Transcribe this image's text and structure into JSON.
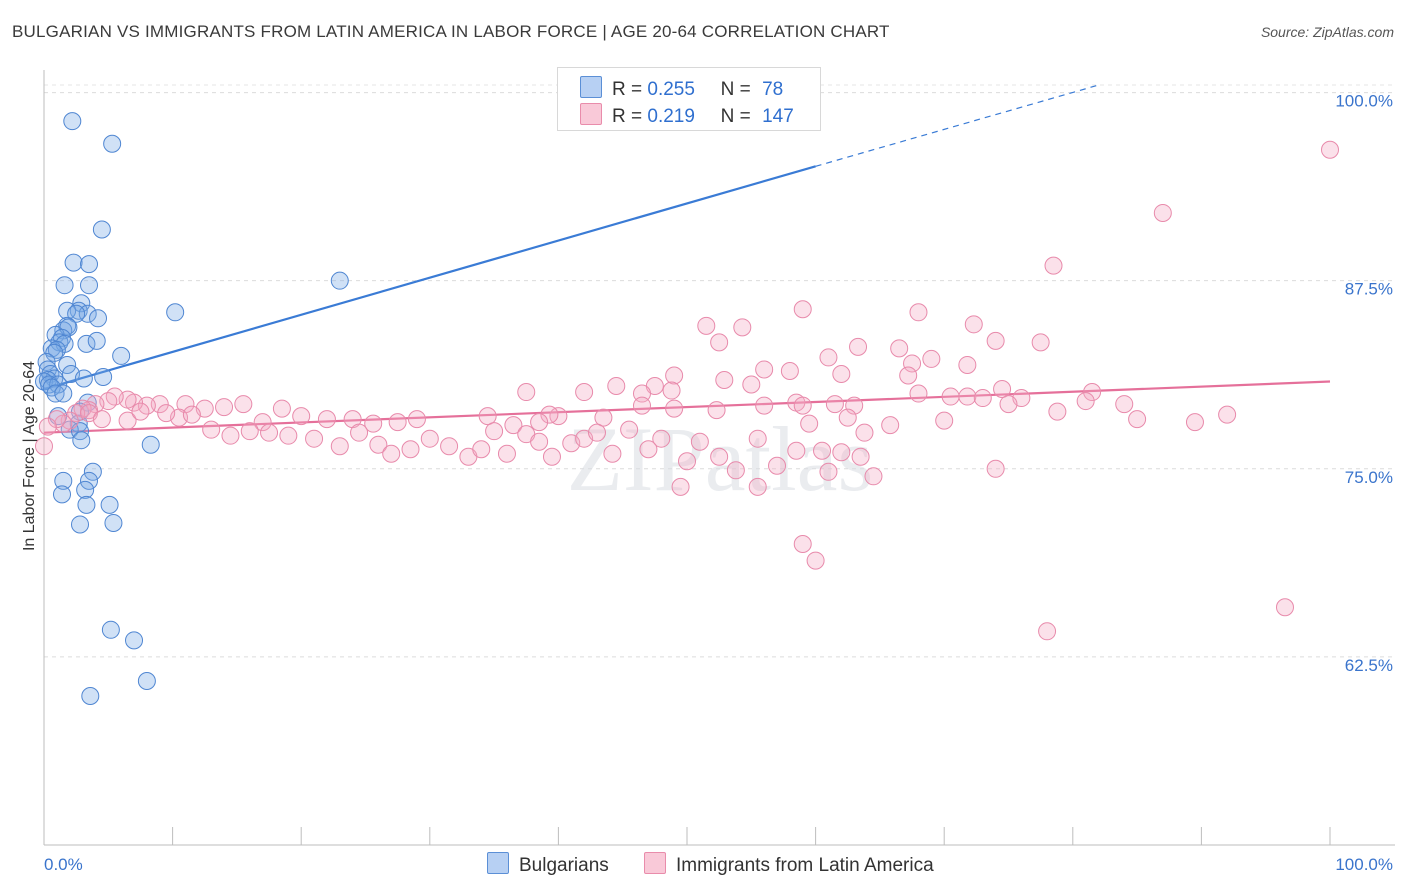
{
  "title": "BULGARIAN VS IMMIGRANTS FROM LATIN AMERICA IN LABOR FORCE | AGE 20-64 CORRELATION CHART",
  "source": "Source: ZipAtlas.com",
  "watermark": "ZIPatlas",
  "legend": {
    "r_label": "R =",
    "n_label": "N =",
    "rows": [
      {
        "r": "0.255",
        "n": "78",
        "color": "#5b8fd6",
        "fill": "#b7d0f3"
      },
      {
        "r": "0.219",
        "n": "147",
        "color": "#e98cab",
        "fill": "#f9c9d8"
      }
    ]
  },
  "bottom_legend": [
    {
      "label": "Bulgarians",
      "color": "#5b8fd6",
      "fill": "#b7d0f3"
    },
    {
      "label": "Immigrants from Latin America",
      "color": "#e98cab",
      "fill": "#f9c9d8"
    }
  ],
  "chart_data": {
    "type": "scatter",
    "xlabel": "",
    "ylabel": "In Labor Force | Age 20-64",
    "xlim": [
      0,
      100
    ],
    "ylim": [
      50,
      101.5
    ],
    "x_tick_labels": [
      "0.0%",
      "100.0%"
    ],
    "y_ticks": [
      62.5,
      75.0,
      87.5,
      100.0
    ],
    "y_tick_labels": [
      "62.5%",
      "75.0%",
      "87.5%",
      "100.0%"
    ],
    "grid": true,
    "series": [
      {
        "name": "Bulgarians",
        "color": "#3a7bd5",
        "trend": {
          "x0": 0.0,
          "y0": 80.3,
          "x1": 60.0,
          "y1": 95.1,
          "dash_to_x": 82.0,
          "dash_to_y": 100.5
        },
        "points": [
          [
            2.2,
            98.1
          ],
          [
            5.3,
            96.6
          ],
          [
            4.5,
            90.9
          ],
          [
            2.3,
            88.7
          ],
          [
            3.5,
            88.6
          ],
          [
            1.6,
            87.2
          ],
          [
            3.5,
            87.2
          ],
          [
            23.0,
            87.5
          ],
          [
            2.9,
            86.0
          ],
          [
            2.7,
            85.5
          ],
          [
            1.8,
            85.5
          ],
          [
            3.4,
            85.3
          ],
          [
            2.5,
            85.3
          ],
          [
            10.2,
            85.4
          ],
          [
            4.2,
            85.0
          ],
          [
            1.8,
            84.5
          ],
          [
            1.5,
            84.2
          ],
          [
            1.9,
            84.4
          ],
          [
            0.9,
            83.9
          ],
          [
            1.4,
            83.7
          ],
          [
            3.3,
            83.3
          ],
          [
            1.2,
            83.4
          ],
          [
            4.1,
            83.5
          ],
          [
            1.6,
            83.3
          ],
          [
            0.6,
            83.0
          ],
          [
            1.0,
            82.9
          ],
          [
            0.8,
            82.7
          ],
          [
            6.0,
            82.5
          ],
          [
            0.2,
            82.1
          ],
          [
            1.8,
            81.9
          ],
          [
            0.3,
            81.6
          ],
          [
            2.1,
            81.3
          ],
          [
            0.5,
            81.3
          ],
          [
            4.6,
            81.1
          ],
          [
            3.1,
            81.0
          ],
          [
            0.8,
            81.0
          ],
          [
            0.3,
            80.9
          ],
          [
            0.0,
            80.8
          ],
          [
            0.4,
            80.6
          ],
          [
            1.1,
            80.6
          ],
          [
            0.6,
            80.4
          ],
          [
            0.9,
            80.0
          ],
          [
            1.5,
            80.0
          ],
          [
            3.4,
            79.4
          ],
          [
            2.8,
            78.8
          ],
          [
            1.1,
            78.5
          ],
          [
            2.7,
            78.0
          ],
          [
            2.0,
            77.6
          ],
          [
            2.8,
            77.5
          ],
          [
            2.9,
            76.9
          ],
          [
            8.3,
            76.6
          ],
          [
            3.8,
            74.8
          ],
          [
            1.5,
            74.2
          ],
          [
            3.5,
            74.2
          ],
          [
            3.2,
            73.6
          ],
          [
            1.4,
            73.3
          ],
          [
            3.3,
            72.6
          ],
          [
            5.1,
            72.6
          ],
          [
            5.4,
            71.4
          ],
          [
            2.8,
            71.3
          ],
          [
            5.2,
            64.3
          ],
          [
            7.0,
            63.6
          ],
          [
            3.6,
            59.9
          ],
          [
            8.0,
            60.9
          ]
        ]
      },
      {
        "name": "Immigrants from Latin America",
        "color": "#e5709a",
        "trend": {
          "x0": 0.0,
          "y0": 77.4,
          "x1": 100.0,
          "y1": 80.8
        },
        "points": [
          [
            100.0,
            96.2
          ],
          [
            87.0,
            92.0
          ],
          [
            78.5,
            88.5
          ],
          [
            59.0,
            85.6
          ],
          [
            68.0,
            85.4
          ],
          [
            51.5,
            84.5
          ],
          [
            54.3,
            84.4
          ],
          [
            72.3,
            84.6
          ],
          [
            52.5,
            83.4
          ],
          [
            63.3,
            83.1
          ],
          [
            66.5,
            83.0
          ],
          [
            74.0,
            83.5
          ],
          [
            77.5,
            83.4
          ],
          [
            61.0,
            82.4
          ],
          [
            69.0,
            82.3
          ],
          [
            67.5,
            82.0
          ],
          [
            71.8,
            81.9
          ],
          [
            58.0,
            81.5
          ],
          [
            56.0,
            81.6
          ],
          [
            49.0,
            81.2
          ],
          [
            67.2,
            81.2
          ],
          [
            62.0,
            81.3
          ],
          [
            52.9,
            80.9
          ],
          [
            48.8,
            80.2
          ],
          [
            44.5,
            80.5
          ],
          [
            47.5,
            80.5
          ],
          [
            55.0,
            80.6
          ],
          [
            46.5,
            80.0
          ],
          [
            74.5,
            80.3
          ],
          [
            68.0,
            80.0
          ],
          [
            70.5,
            79.8
          ],
          [
            71.8,
            79.8
          ],
          [
            73.0,
            79.7
          ],
          [
            58.5,
            79.4
          ],
          [
            61.5,
            79.3
          ],
          [
            76.0,
            79.7
          ],
          [
            81.5,
            80.1
          ],
          [
            37.5,
            80.1
          ],
          [
            42.0,
            80.1
          ],
          [
            46.5,
            79.2
          ],
          [
            49.0,
            79.0
          ],
          [
            52.3,
            78.9
          ],
          [
            56.0,
            79.2
          ],
          [
            59.0,
            79.2
          ],
          [
            63.0,
            79.2
          ],
          [
            75.0,
            79.3
          ],
          [
            78.8,
            78.8
          ],
          [
            81.0,
            79.5
          ],
          [
            84.0,
            79.3
          ],
          [
            85.0,
            78.3
          ],
          [
            89.5,
            78.1
          ],
          [
            92.0,
            78.6
          ],
          [
            70.0,
            78.2
          ],
          [
            65.8,
            77.9
          ],
          [
            43.5,
            78.4
          ],
          [
            40.0,
            78.5
          ],
          [
            39.3,
            78.6
          ],
          [
            38.5,
            78.1
          ],
          [
            36.5,
            77.9
          ],
          [
            34.5,
            78.5
          ],
          [
            29.0,
            78.3
          ],
          [
            27.5,
            78.1
          ],
          [
            25.6,
            78.0
          ],
          [
            24.0,
            78.3
          ],
          [
            22.0,
            78.3
          ],
          [
            20.0,
            78.5
          ],
          [
            18.5,
            79.0
          ],
          [
            17.0,
            78.1
          ],
          [
            15.5,
            79.3
          ],
          [
            14.0,
            79.1
          ],
          [
            12.5,
            79.0
          ],
          [
            11.0,
            79.3
          ],
          [
            10.5,
            78.4
          ],
          [
            9.0,
            79.3
          ],
          [
            8.0,
            79.2
          ],
          [
            7.0,
            79.4
          ],
          [
            6.5,
            79.6
          ],
          [
            5.5,
            79.8
          ],
          [
            5.0,
            79.5
          ],
          [
            4.0,
            79.3
          ],
          [
            3.5,
            78.9
          ],
          [
            3.0,
            79.0
          ],
          [
            2.5,
            78.7
          ],
          [
            2.0,
            78.2
          ],
          [
            1.5,
            78.0
          ],
          [
            1.0,
            78.3
          ],
          [
            0.3,
            77.8
          ],
          [
            0.0,
            76.5
          ],
          [
            3.5,
            78.7
          ],
          [
            4.5,
            78.3
          ],
          [
            6.5,
            78.2
          ],
          [
            7.5,
            78.8
          ],
          [
            9.5,
            78.7
          ],
          [
            11.5,
            78.6
          ],
          [
            13.0,
            77.6
          ],
          [
            14.5,
            77.2
          ],
          [
            16.0,
            77.5
          ],
          [
            17.5,
            77.4
          ],
          [
            19.0,
            77.2
          ],
          [
            21.0,
            77.0
          ],
          [
            23.0,
            76.5
          ],
          [
            24.5,
            77.4
          ],
          [
            26.0,
            76.6
          ],
          [
            27.0,
            76.0
          ],
          [
            28.5,
            76.3
          ],
          [
            30.0,
            77.0
          ],
          [
            31.5,
            76.5
          ],
          [
            33.0,
            75.8
          ],
          [
            34.0,
            76.3
          ],
          [
            35.0,
            77.5
          ],
          [
            36.0,
            76.0
          ],
          [
            37.5,
            77.3
          ],
          [
            38.5,
            76.8
          ],
          [
            39.5,
            75.8
          ],
          [
            41.0,
            76.7
          ],
          [
            42.0,
            77.0
          ],
          [
            43.0,
            77.4
          ],
          [
            44.2,
            76.0
          ],
          [
            45.5,
            77.6
          ],
          [
            47.0,
            76.3
          ],
          [
            48.0,
            77.0
          ],
          [
            50.0,
            75.5
          ],
          [
            51.0,
            76.8
          ],
          [
            52.5,
            75.8
          ],
          [
            53.8,
            74.9
          ],
          [
            55.5,
            77.0
          ],
          [
            57.0,
            75.2
          ],
          [
            58.5,
            76.2
          ],
          [
            59.5,
            78.0
          ],
          [
            60.5,
            76.2
          ],
          [
            61.0,
            74.8
          ],
          [
            62.0,
            76.1
          ],
          [
            63.5,
            75.8
          ],
          [
            64.5,
            74.5
          ],
          [
            62.5,
            78.4
          ],
          [
            63.8,
            77.4
          ],
          [
            49.5,
            73.8
          ],
          [
            55.5,
            73.8
          ],
          [
            74.0,
            75.0
          ],
          [
            59.0,
            70.0
          ],
          [
            60.0,
            68.9
          ],
          [
            96.5,
            65.8
          ],
          [
            78.0,
            64.2
          ]
        ]
      }
    ]
  }
}
